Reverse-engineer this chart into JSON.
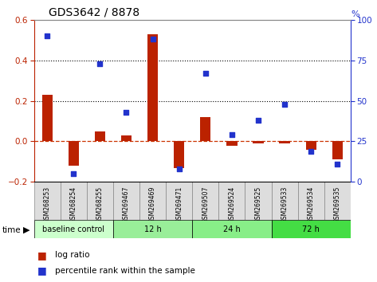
{
  "title": "GDS3642 / 8878",
  "samples": [
    "GSM268253",
    "GSM268254",
    "GSM268255",
    "GSM269467",
    "GSM269469",
    "GSM269471",
    "GSM269507",
    "GSM269524",
    "GSM269525",
    "GSM269533",
    "GSM269534",
    "GSM269535"
  ],
  "log_ratio": [
    0.23,
    -0.12,
    0.05,
    0.03,
    0.53,
    -0.13,
    0.12,
    -0.02,
    -0.01,
    -0.01,
    -0.04,
    -0.09
  ],
  "percentile_rank": [
    90,
    5,
    73,
    43,
    88,
    8,
    67,
    29,
    38,
    48,
    19,
    11
  ],
  "ylim_left": [
    -0.2,
    0.6
  ],
  "ylim_right": [
    0,
    100
  ],
  "yticks_left": [
    -0.2,
    0.0,
    0.2,
    0.4,
    0.6
  ],
  "yticks_right": [
    0,
    25,
    50,
    75,
    100
  ],
  "hlines": [
    0.2,
    0.4
  ],
  "bar_color": "#bb2200",
  "dot_color": "#2233cc",
  "zero_line_color": "#cc3300",
  "group_data": [
    {
      "label": "baseline control",
      "start": 0,
      "end": 3,
      "color": "#ccffcc"
    },
    {
      "label": "12 h",
      "start": 3,
      "end": 6,
      "color": "#99ee99"
    },
    {
      "label": "24 h",
      "start": 6,
      "end": 9,
      "color": "#88ee88"
    },
    {
      "label": "72 h",
      "start": 9,
      "end": 12,
      "color": "#44dd44"
    }
  ],
  "legend_items": [
    {
      "label": "log ratio",
      "color": "#bb2200"
    },
    {
      "label": "percentile rank within the sample",
      "color": "#2233cc"
    }
  ],
  "label_bg_color": "#dddddd",
  "label_border_color": "#888888"
}
